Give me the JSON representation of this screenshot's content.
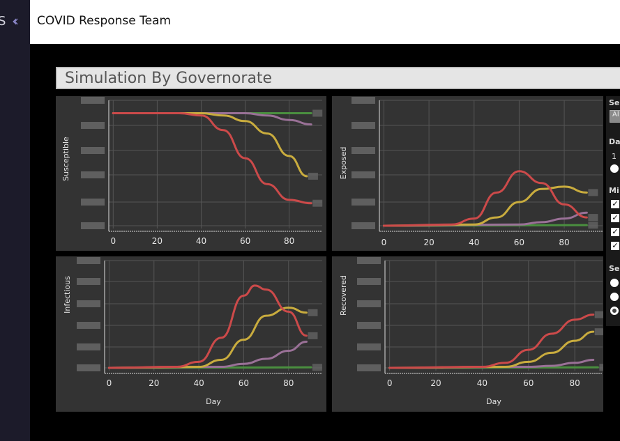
{
  "sidebar": {
    "brand_fragment": "S",
    "collapse_icon": "double-chevron-left-icon"
  },
  "header": {
    "title": "COVID Response Team"
  },
  "dashboard": {
    "title": "Simulation By Governorate"
  },
  "controls": {
    "select_label_1": "Sel",
    "select_value": "Al",
    "days_label": "Day",
    "days_value": "1",
    "mix_label": "Mi",
    "select_label_2": "Sel"
  },
  "colors": {
    "red": "#cc4a4a",
    "yellow": "#c9ac3e",
    "purple": "#9a7197",
    "green": "#4a8f3f",
    "panel": "#333333",
    "grid": "#555555"
  },
  "chart_data": [
    {
      "type": "line",
      "ylabel": "Susceptible",
      "xlabel": "",
      "x_ticks": [
        0,
        20,
        40,
        60,
        80
      ],
      "xlim": [
        -2,
        95
      ],
      "series": [
        {
          "color": "red",
          "points": [
            [
              0,
              1
            ],
            [
              30,
              1
            ],
            [
              40,
              0.98
            ],
            [
              50,
              0.85
            ],
            [
              60,
              0.6
            ],
            [
              70,
              0.37
            ],
            [
              80,
              0.23
            ],
            [
              90,
              0.2
            ]
          ]
        },
        {
          "color": "yellow",
          "points": [
            [
              0,
              1
            ],
            [
              40,
              1
            ],
            [
              50,
              0.98
            ],
            [
              60,
              0.93
            ],
            [
              70,
              0.82
            ],
            [
              80,
              0.62
            ],
            [
              88,
              0.44
            ]
          ]
        },
        {
          "color": "purple",
          "points": [
            [
              0,
              1
            ],
            [
              60,
              1
            ],
            [
              70,
              0.98
            ],
            [
              80,
              0.94
            ],
            [
              90,
              0.9
            ]
          ]
        },
        {
          "color": "green",
          "points": [
            [
              0,
              1
            ],
            [
              90,
              1
            ]
          ]
        }
      ]
    },
    {
      "type": "line",
      "ylabel": "Exposed",
      "xlabel": "",
      "x_ticks": [
        0,
        20,
        40,
        60,
        80
      ],
      "xlim": [
        -2,
        97
      ],
      "series": [
        {
          "color": "red",
          "points": [
            [
              0,
              0
            ],
            [
              30,
              0.01
            ],
            [
              40,
              0.06
            ],
            [
              50,
              0.28
            ],
            [
              60,
              0.46
            ],
            [
              70,
              0.36
            ],
            [
              80,
              0.18
            ],
            [
              90,
              0.07
            ]
          ]
        },
        {
          "color": "yellow",
          "points": [
            [
              0,
              0
            ],
            [
              40,
              0.01
            ],
            [
              50,
              0.07
            ],
            [
              60,
              0.2
            ],
            [
              70,
              0.31
            ],
            [
              80,
              0.33
            ],
            [
              90,
              0.28
            ]
          ]
        },
        {
          "color": "purple",
          "points": [
            [
              0,
              0
            ],
            [
              60,
              0.01
            ],
            [
              70,
              0.03
            ],
            [
              80,
              0.06
            ],
            [
              90,
              0.11
            ]
          ]
        },
        {
          "color": "green",
          "points": [
            [
              0,
              0
            ],
            [
              90,
              0.005
            ]
          ]
        }
      ]
    },
    {
      "type": "line",
      "ylabel": "Infectious",
      "xlabel": "Day",
      "x_ticks": [
        0,
        20,
        40,
        60,
        80
      ],
      "xlim": [
        -2,
        95
      ],
      "series": [
        {
          "color": "red",
          "points": [
            [
              0,
              0
            ],
            [
              30,
              0.01
            ],
            [
              40,
              0.06
            ],
            [
              50,
              0.3
            ],
            [
              60,
              0.72
            ],
            [
              65,
              0.82
            ],
            [
              70,
              0.78
            ],
            [
              80,
              0.56
            ],
            [
              88,
              0.32
            ]
          ]
        },
        {
          "color": "yellow",
          "points": [
            [
              0,
              0
            ],
            [
              40,
              0.01
            ],
            [
              50,
              0.08
            ],
            [
              60,
              0.28
            ],
            [
              70,
              0.52
            ],
            [
              80,
              0.6
            ],
            [
              88,
              0.55
            ]
          ]
        },
        {
          "color": "purple",
          "points": [
            [
              0,
              0
            ],
            [
              50,
              0.01
            ],
            [
              60,
              0.04
            ],
            [
              70,
              0.09
            ],
            [
              80,
              0.17
            ],
            [
              88,
              0.26
            ]
          ]
        },
        {
          "color": "green",
          "points": [
            [
              0,
              0
            ],
            [
              90,
              0.005
            ]
          ]
        }
      ]
    },
    {
      "type": "line",
      "ylabel": "Recovered",
      "xlabel": "Day",
      "x_ticks": [
        0,
        20,
        40,
        60,
        80
      ],
      "xlim": [
        -2,
        92
      ],
      "series": [
        {
          "color": "red",
          "points": [
            [
              0,
              0
            ],
            [
              40,
              0.01
            ],
            [
              50,
              0.05
            ],
            [
              60,
              0.18
            ],
            [
              70,
              0.34
            ],
            [
              80,
              0.48
            ],
            [
              88,
              0.53
            ]
          ]
        },
        {
          "color": "yellow",
          "points": [
            [
              0,
              0
            ],
            [
              50,
              0.01
            ],
            [
              60,
              0.06
            ],
            [
              70,
              0.15
            ],
            [
              80,
              0.27
            ],
            [
              88,
              0.36
            ]
          ]
        },
        {
          "color": "purple",
          "points": [
            [
              0,
              0
            ],
            [
              60,
              0.01
            ],
            [
              70,
              0.02
            ],
            [
              80,
              0.05
            ],
            [
              88,
              0.08
            ]
          ]
        },
        {
          "color": "green",
          "points": [
            [
              0,
              0
            ],
            [
              90,
              0.005
            ]
          ]
        }
      ]
    }
  ]
}
